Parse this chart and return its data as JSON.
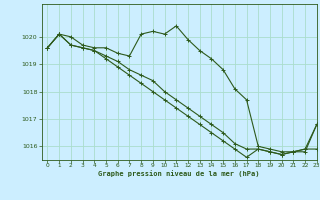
{
  "title": "Graphe pression niveau de la mer (hPa)",
  "background_color": "#cceeff",
  "grid_color": "#aaddcc",
  "line_color": "#2d5a1b",
  "xlim": [
    -0.5,
    23
  ],
  "ylim": [
    1015.5,
    1021.2
  ],
  "yticks": [
    1016,
    1017,
    1018,
    1019,
    1020
  ],
  "xticks": [
    0,
    1,
    2,
    3,
    4,
    5,
    6,
    7,
    8,
    9,
    10,
    11,
    12,
    13,
    14,
    15,
    16,
    17,
    18,
    19,
    20,
    21,
    22,
    23
  ],
  "series": [
    [
      1019.6,
      1020.1,
      1020.0,
      1019.7,
      1019.6,
      1019.6,
      1019.4,
      1019.3,
      1020.1,
      1020.2,
      1020.1,
      1020.4,
      1019.9,
      1019.5,
      1019.2,
      1018.8,
      1018.1,
      1017.7,
      1016.0,
      1015.9,
      1015.8,
      1015.8,
      1015.9,
      1015.9
    ],
    [
      1019.6,
      1020.1,
      1019.7,
      1019.6,
      1019.5,
      1019.2,
      1018.9,
      1018.6,
      1018.3,
      1018.0,
      1017.7,
      1017.4,
      1017.1,
      1016.8,
      1016.5,
      1016.2,
      1015.9,
      1015.6,
      1015.9,
      1015.8,
      1015.7,
      1015.8,
      1015.8,
      1016.8
    ],
    [
      1019.6,
      1020.1,
      1019.7,
      1019.6,
      1019.5,
      1019.3,
      1019.1,
      1018.8,
      1018.6,
      1018.4,
      1018.0,
      1017.7,
      1017.4,
      1017.1,
      1016.8,
      1016.5,
      1016.1,
      1015.9,
      1015.9,
      1015.8,
      1015.7,
      1015.8,
      1015.9,
      1016.8
    ]
  ]
}
